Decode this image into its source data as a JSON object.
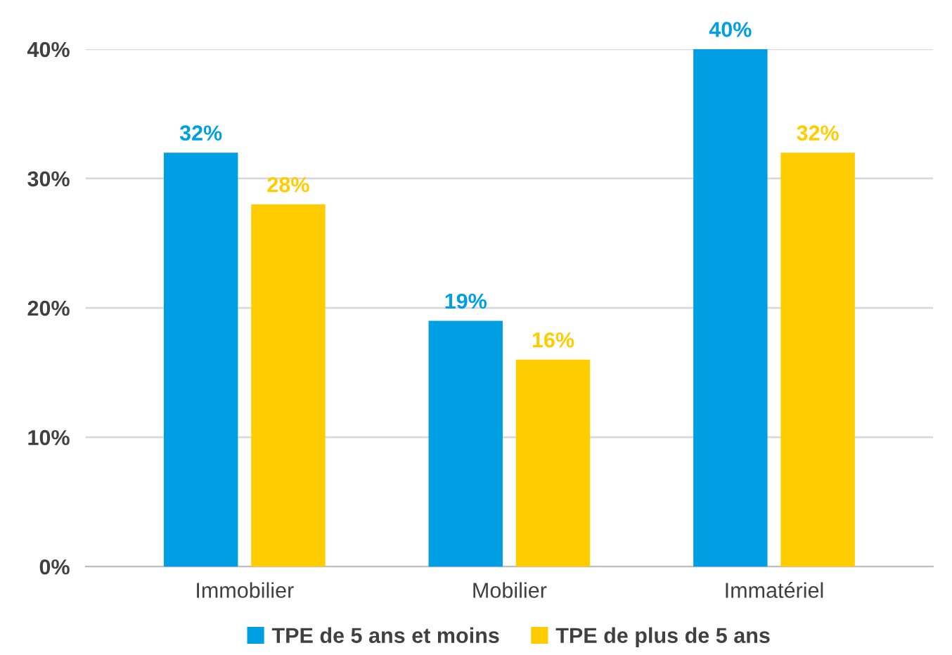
{
  "chart_data": {
    "type": "bar",
    "categories": [
      "Immobilier",
      "Mobilier",
      "Immatériel"
    ],
    "series": [
      {
        "name": "TPE de 5 ans et moins",
        "color": "#009fe3",
        "values": [
          32,
          19,
          40
        ],
        "value_labels": [
          "32%",
          "19%",
          "40%"
        ]
      },
      {
        "name": "TPE de plus de 5 ans",
        "color": "#ffcc00",
        "values": [
          28,
          16,
          32
        ],
        "value_labels": [
          "28%",
          "16%",
          "32%"
        ]
      }
    ],
    "ylim": [
      0,
      40
    ],
    "yticks": [
      {
        "value": 0,
        "label": "0%"
      },
      {
        "value": 10,
        "label": "10%"
      },
      {
        "value": 20,
        "label": "20%"
      },
      {
        "value": 30,
        "label": "30%"
      },
      {
        "value": 40,
        "label": "40%"
      }
    ],
    "grid": "y",
    "legend": "bottom"
  }
}
